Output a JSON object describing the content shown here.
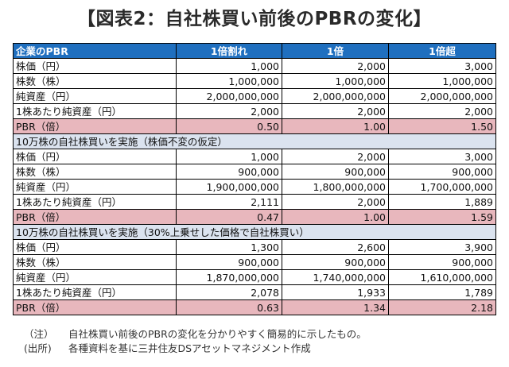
{
  "title": "【図表2：自社株買い前後のPBRの変化】",
  "table": {
    "headers": [
      "企業のPBR",
      "1倍割れ",
      "1倍",
      "1倍超"
    ],
    "sections": [
      {
        "caption": "",
        "rows": [
          {
            "label": "株価（円）",
            "values": [
              "1,000",
              "2,000",
              "3,000"
            ],
            "pbr": false
          },
          {
            "label": "株数（株）",
            "values": [
              "1,000,000",
              "1,000,000",
              "1,000,000"
            ],
            "pbr": false
          },
          {
            "label": "純資産（円）",
            "values": [
              "2,000,000,000",
              "2,000,000,000",
              "2,000,000,000"
            ],
            "pbr": false
          },
          {
            "label": "1株あたり純資産（円）",
            "values": [
              "2,000",
              "2,000",
              "2,000"
            ],
            "pbr": false
          },
          {
            "label": "PBR（倍）",
            "values": [
              "0.50",
              "1.00",
              "1.50"
            ],
            "pbr": true
          }
        ]
      },
      {
        "caption": "10万株の自社株買いを実施（株価不変の仮定）",
        "rows": [
          {
            "label": "株価（円）",
            "values": [
              "1,000",
              "2,000",
              "3,000"
            ],
            "pbr": false
          },
          {
            "label": "株数（株）",
            "values": [
              "900,000",
              "900,000",
              "900,000"
            ],
            "pbr": false
          },
          {
            "label": "純資産（円）",
            "values": [
              "1,900,000,000",
              "1,800,000,000",
              "1,700,000,000"
            ],
            "pbr": false
          },
          {
            "label": "1株あたり純資産（円）",
            "values": [
              "2,111",
              "2,000",
              "1,889"
            ],
            "pbr": false
          },
          {
            "label": "PBR（倍）",
            "values": [
              "0.47",
              "1.00",
              "1.59"
            ],
            "pbr": true
          }
        ]
      },
      {
        "caption": "10万株の自社株買いを実施（30%上乗せした価格で自社株買い）",
        "rows": [
          {
            "label": "株価（円）",
            "values": [
              "1,300",
              "2,600",
              "3,900"
            ],
            "pbr": false
          },
          {
            "label": "株数（株）",
            "values": [
              "900,000",
              "900,000",
              "900,000"
            ],
            "pbr": false
          },
          {
            "label": "純資産（円）",
            "values": [
              "1,870,000,000",
              "1,740,000,000",
              "1,610,000,000"
            ],
            "pbr": false
          },
          {
            "label": "1株あたり純資産（円）",
            "values": [
              "2,078",
              "1,933",
              "1,789"
            ],
            "pbr": false
          },
          {
            "label": "PBR（倍）",
            "values": [
              "0.63",
              "1.34",
              "2.18"
            ],
            "pbr": true
          }
        ]
      }
    ]
  },
  "notes": [
    {
      "tag": "（注）",
      "text": "自社株買い前後のPBRの変化を分かりやすく簡易的に示したもの。"
    },
    {
      "tag": "(出所)",
      "text": "各種資料を基に三井住友DSアセットマネジメント作成"
    }
  ],
  "colors": {
    "header_bg": "#1f6fbf",
    "pbr_row_bg": "#e8b7bd",
    "section_row_bg": "#dbe3ef"
  }
}
